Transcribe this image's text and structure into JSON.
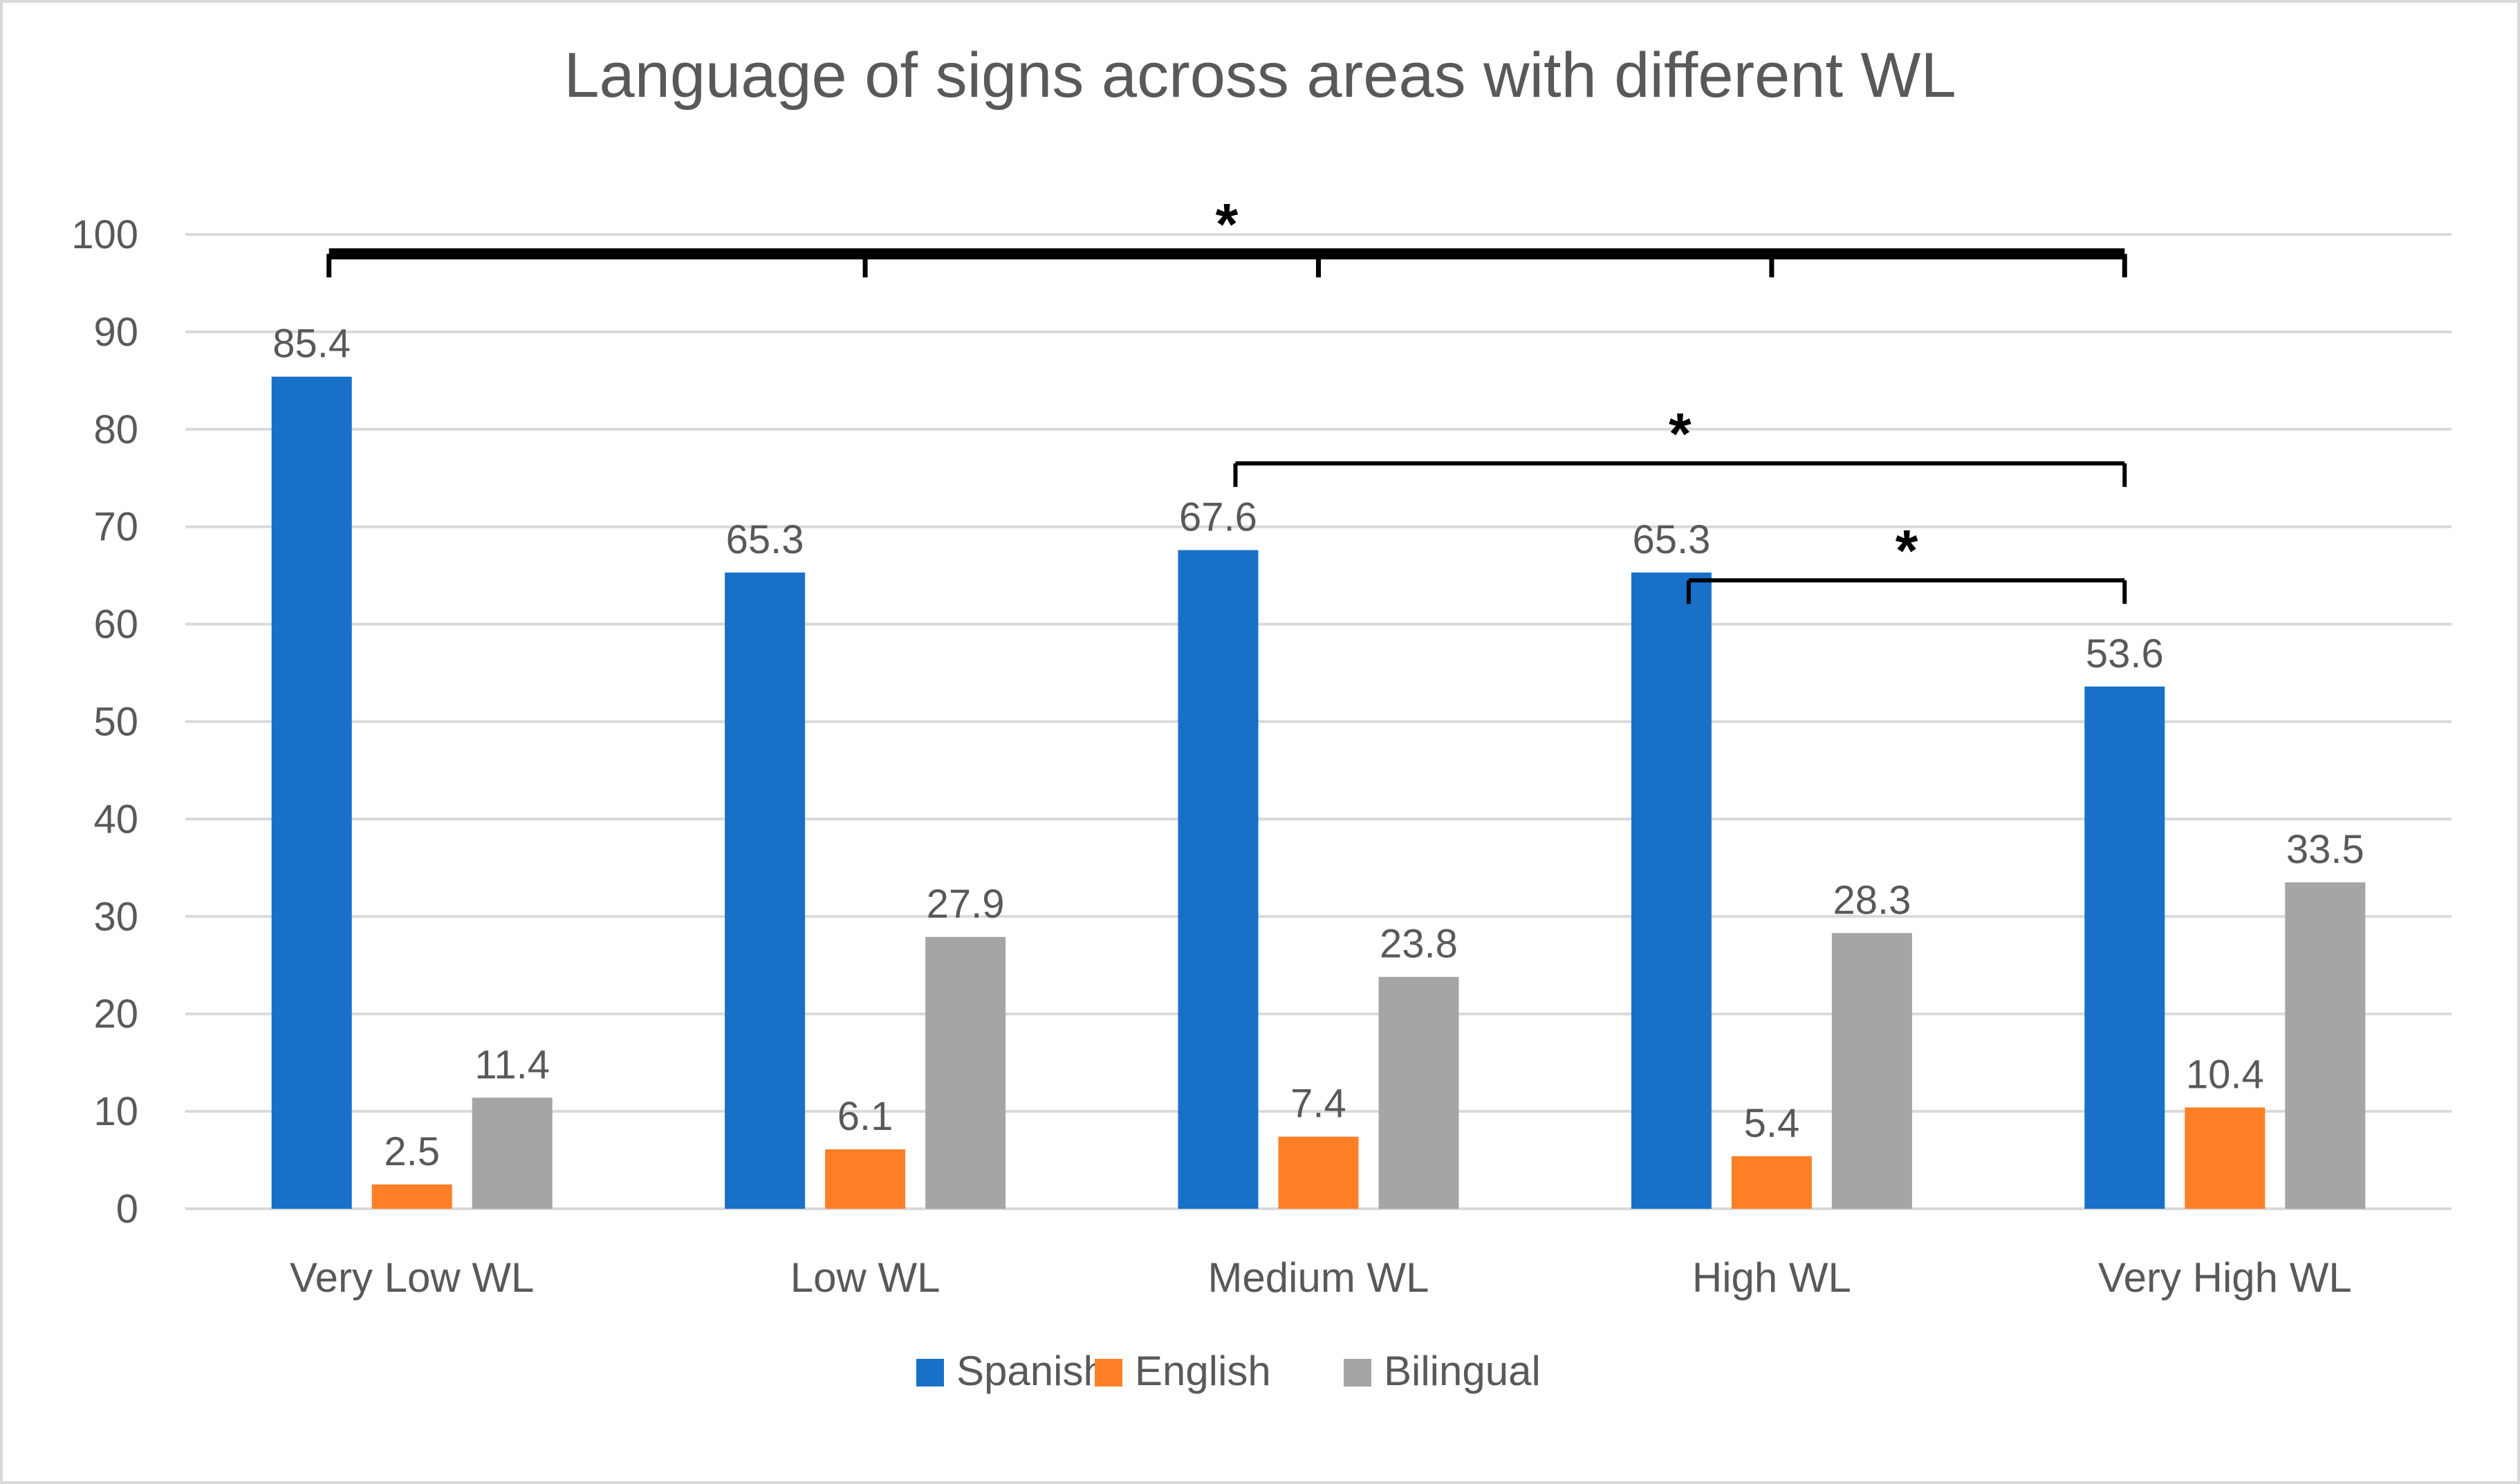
{
  "chart_data": {
    "type": "bar",
    "title": "Language of signs across areas with different WL",
    "xlabel": "",
    "ylabel": "",
    "ylim": [
      0,
      100
    ],
    "y_ticks": [
      0,
      10,
      20,
      30,
      40,
      50,
      60,
      70,
      80,
      90,
      100
    ],
    "grid": true,
    "legend_position": "bottom",
    "categories": [
      "Very Low WL",
      "Low WL",
      "Medium WL",
      "High WL",
      "Very High WL"
    ],
    "series": [
      {
        "name": "Spanish",
        "color": "#1870C9",
        "values": [
          85.4,
          65.3,
          67.6,
          65.3,
          53.6
        ]
      },
      {
        "name": "English",
        "color": "#FF7F27",
        "values": [
          2.5,
          6.1,
          7.4,
          5.4,
          10.4
        ]
      },
      {
        "name": "Bilingual",
        "color": "#A5A5A5",
        "values": [
          11.4,
          27.9,
          23.8,
          28.3,
          33.5
        ]
      }
    ],
    "annotations": [
      {
        "label": "*",
        "type": "significance-bracket",
        "from_category": 0,
        "to_category": 4,
        "level": 98,
        "heavy": true,
        "drops": [
          0,
          1,
          2,
          3,
          4
        ]
      },
      {
        "label": "*",
        "type": "significance-bracket",
        "from_category": 2,
        "to_category": 4,
        "level": 76.5
      },
      {
        "label": "*",
        "type": "significance-bracket",
        "from_category": 3,
        "to_category": 4,
        "level": 64.5
      }
    ]
  }
}
